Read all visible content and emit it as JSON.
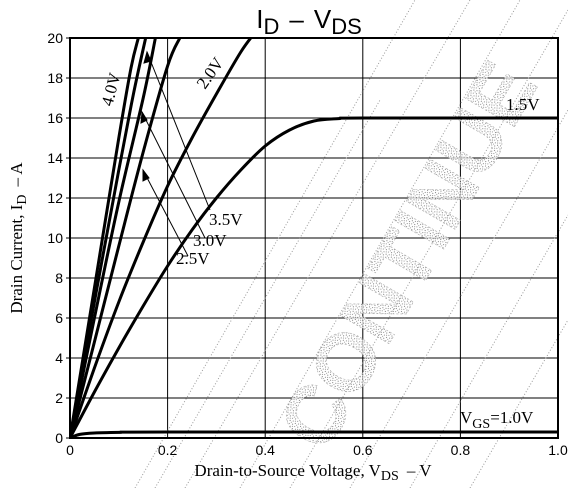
{
  "chart_data": {
    "type": "line",
    "title_main": "I",
    "title_sub": "D",
    "title_dash": "–",
    "title_v": "V",
    "title_v_sub": "DS",
    "xlabel_main": "Drain-to-Source Voltage, V",
    "xlabel_sub": "DS",
    "xlabel_unit": "–  V",
    "ylabel_main": "Drain Current, I",
    "ylabel_sub": "D",
    "ylabel_unit": "–  A",
    "xlim": [
      0,
      1.0
    ],
    "ylim": [
      0,
      20
    ],
    "x_ticks": [
      "0",
      "0.2",
      "0.4",
      "0.6",
      "0.8",
      "1.0"
    ],
    "y_ticks": [
      "0",
      "2",
      "4",
      "6",
      "8",
      "10",
      "12",
      "14",
      "16",
      "18",
      "20"
    ],
    "grid": true,
    "series": [
      {
        "name": "4.0V",
        "x": [
          0,
          0.05,
          0.1,
          0.125,
          0.14
        ],
        "y": [
          0,
          7.5,
          15,
          18.5,
          20
        ]
      },
      {
        "name": "3.5V",
        "x": [
          0,
          0.05,
          0.1,
          0.13,
          0.155
        ],
        "y": [
          0,
          6.8,
          13.4,
          17.2,
          20
        ]
      },
      {
        "name": "3.0V",
        "x": [
          0,
          0.05,
          0.1,
          0.15,
          0.175
        ],
        "y": [
          0,
          6,
          11.8,
          17,
          20
        ]
      },
      {
        "name": "2.5V",
        "x": [
          0,
          0.05,
          0.1,
          0.15,
          0.2,
          0.225
        ],
        "y": [
          0,
          4.8,
          9.6,
          14.3,
          18.6,
          20
        ]
      },
      {
        "name": "2.0V",
        "x": [
          0,
          0.05,
          0.1,
          0.15,
          0.2,
          0.25,
          0.3,
          0.35,
          0.38
        ],
        "y": [
          0,
          3.5,
          6.8,
          9.8,
          12.6,
          15,
          17.2,
          19.3,
          20.3
        ]
      },
      {
        "name": "1.5V",
        "x": [
          0,
          0.05,
          0.1,
          0.15,
          0.2,
          0.25,
          0.3,
          0.35,
          0.4,
          0.45,
          0.5,
          0.55,
          0.6,
          1.0
        ],
        "y": [
          0,
          2.3,
          4.5,
          6.6,
          8.6,
          10.4,
          12,
          13.4,
          14.6,
          15.4,
          15.85,
          15.97,
          16,
          16
        ]
      },
      {
        "name": "VGS=1.0V",
        "x": [
          0,
          0.02,
          0.05,
          0.1,
          0.2,
          1.0
        ],
        "y": [
          0,
          0.18,
          0.25,
          0.28,
          0.3,
          0.3
        ]
      }
    ],
    "annotations": {
      "v40": "4.0V",
      "v35": "3.5V",
      "v30": "3.0V",
      "v25": "2.5V",
      "v20": "2.0V",
      "v15": "1.5V",
      "vgs_main": "V",
      "vgs_sub": "GS",
      "vgs_value": "=1.0V"
    }
  },
  "watermark": "CONTINUE"
}
